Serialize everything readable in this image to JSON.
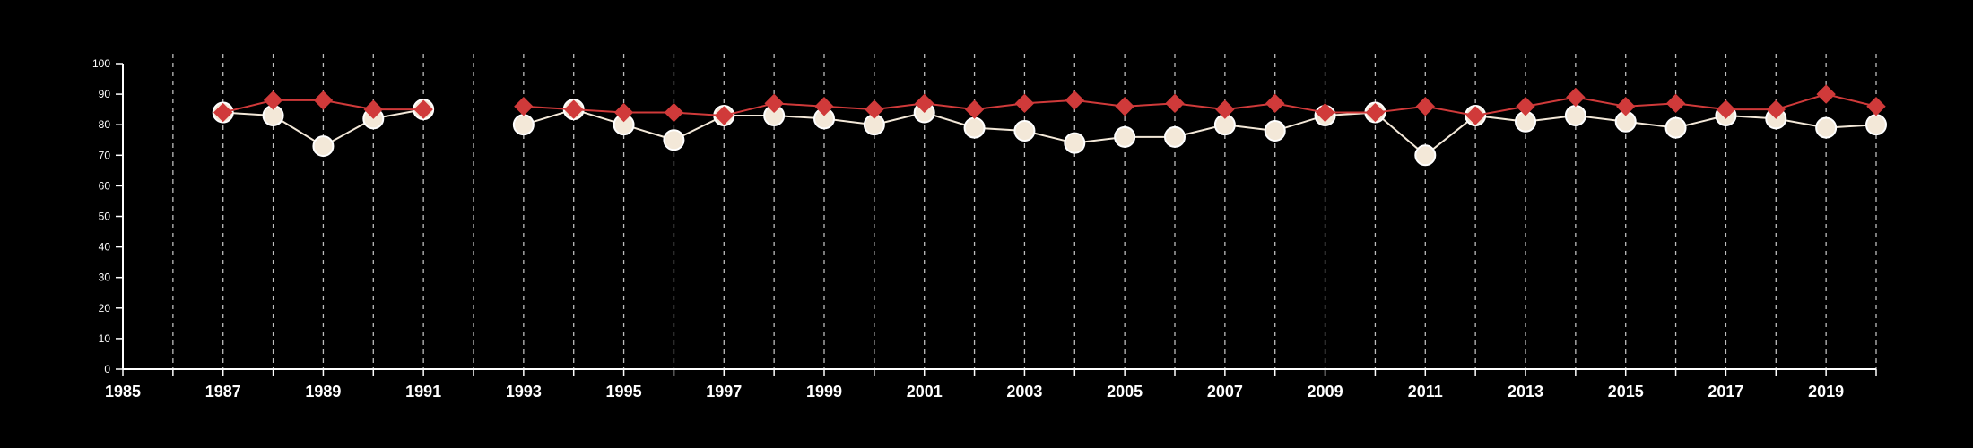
{
  "chart_data": {
    "type": "line",
    "title": "",
    "xlabel": "",
    "ylabel": "",
    "xlim": [
      1985,
      2020
    ],
    "ylim": [
      0,
      100
    ],
    "x_tick_labels": [
      "1985",
      "1987",
      "1989",
      "1991",
      "1993",
      "1995",
      "1997",
      "1999",
      "2001",
      "2003",
      "2005",
      "2007",
      "2009",
      "2011",
      "2013",
      "2015",
      "2017",
      "2019"
    ],
    "y_tick_labels": [
      "0",
      "10",
      "20",
      "30",
      "40",
      "50",
      "60",
      "70",
      "80",
      "90",
      "100"
    ],
    "grid": "vertical dashed lines at every year",
    "legend": "none",
    "series": [
      {
        "marker": "diamond",
        "color": "#d03a3a",
        "x": [
          1987,
          1988,
          1989,
          1990,
          1991,
          1993,
          1994,
          1995,
          1996,
          1997,
          1998,
          1999,
          2000,
          2001,
          2002,
          2003,
          2004,
          2005,
          2006,
          2007,
          2008,
          2009,
          2010,
          2011,
          2012,
          2013,
          2014,
          2015,
          2016,
          2017,
          2018,
          2019,
          2020
        ],
        "values": [
          84,
          88,
          88,
          85,
          85,
          86,
          85,
          84,
          84,
          83,
          87,
          86,
          85,
          87,
          85,
          87,
          88,
          86,
          87,
          85,
          87,
          84,
          84,
          86,
          83,
          86,
          89,
          86,
          87,
          85,
          85,
          90,
          86
        ]
      },
      {
        "marker": "circle",
        "color": "#f3e8d8",
        "x": [
          1987,
          1988,
          1989,
          1990,
          1991,
          1993,
          1994,
          1995,
          1996,
          1997,
          1998,
          1999,
          2000,
          2001,
          2002,
          2003,
          2004,
          2005,
          2006,
          2007,
          2008,
          2009,
          2010,
          2011,
          2012,
          2013,
          2014,
          2015,
          2016,
          2017,
          2018,
          2019,
          2020
        ],
        "values": [
          84,
          83,
          73,
          82,
          85,
          80,
          85,
          80,
          75,
          83,
          83,
          82,
          80,
          84,
          79,
          78,
          74,
          76,
          76,
          80,
          78,
          83,
          84,
          70,
          83,
          81,
          83,
          81,
          79,
          83,
          82,
          79,
          80
        ]
      }
    ]
  },
  "colors": {
    "background": "#000000",
    "axis": "#ffffff",
    "grid": "#bdbdbd"
  }
}
